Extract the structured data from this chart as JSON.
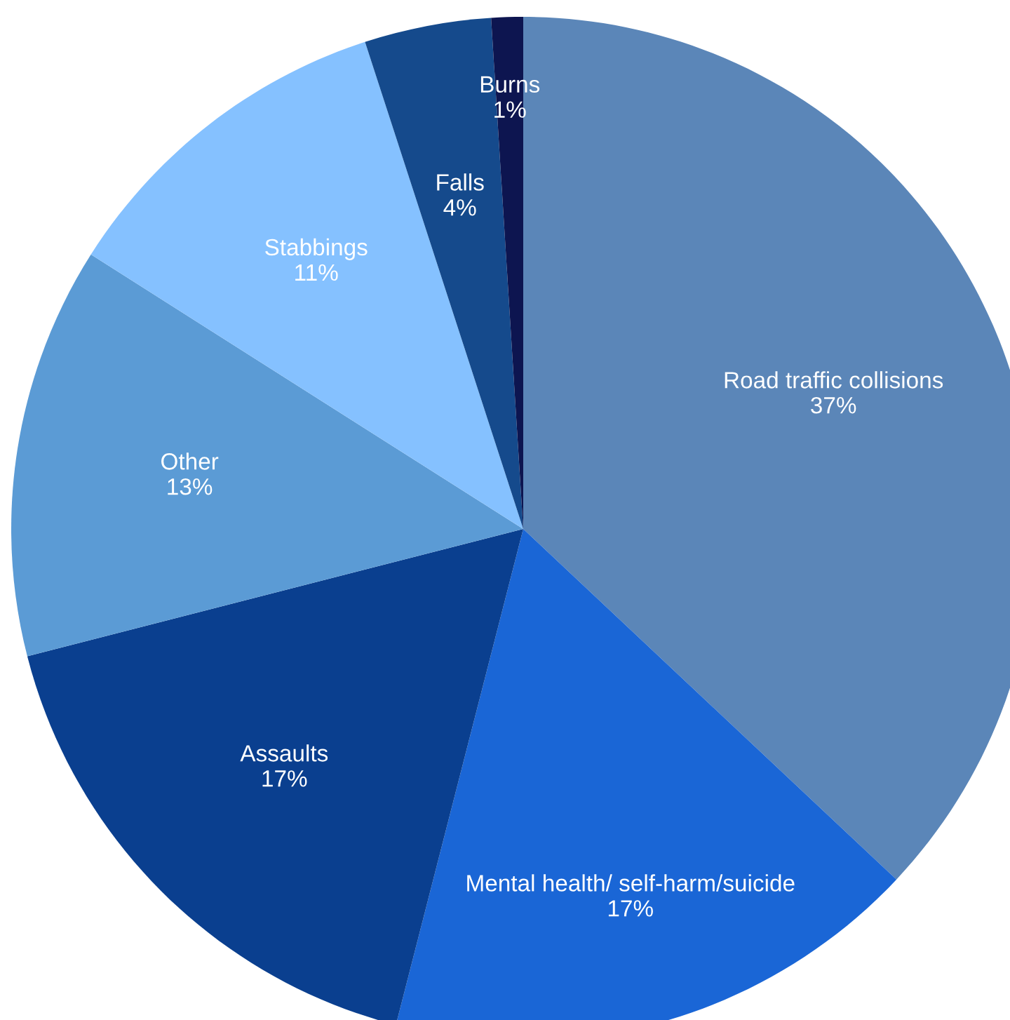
{
  "chart_data": {
    "type": "pie",
    "categories": [
      "Road traffic collisions",
      "Mental health/ self-harm/suicide",
      "Assaults",
      "Other",
      "Stabbings",
      "Falls",
      "Burns"
    ],
    "values": [
      37,
      17,
      17,
      13,
      11,
      4,
      1
    ],
    "colors": [
      "#5b86b8",
      "#1a66d6",
      "#0a3f8f",
      "#5b9bd5",
      "#85c1ff",
      "#154a8c",
      "#0d1550"
    ],
    "value_labels": [
      "37%",
      "17%",
      "17%",
      "13%",
      "11%",
      "4%",
      "1%"
    ]
  }
}
